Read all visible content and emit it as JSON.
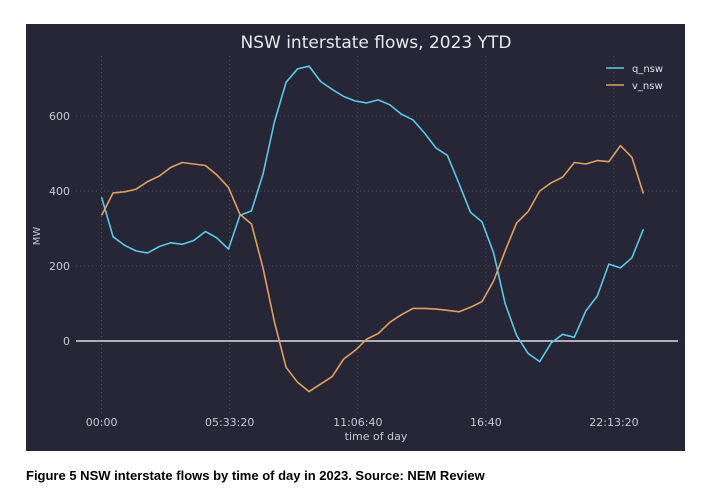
{
  "caption": "Figure 5 NSW interstate flows by time of day in 2023. Source: NEM Review",
  "chart_data": {
    "type": "line",
    "title": "NSW interstate flows, 2023 YTD",
    "xlabel": "time of day",
    "ylabel": "MW",
    "x_unit": "seconds since 00:00",
    "xlim": [
      -4000,
      90000
    ],
    "ylim": [
      -200,
      760
    ],
    "x_ticks": [
      {
        "value": 0,
        "label": "00:00"
      },
      {
        "value": 20000,
        "label": "05:33:20"
      },
      {
        "value": 40000,
        "label": "11:06:40"
      },
      {
        "value": 60000,
        "label": "16:40"
      },
      {
        "value": 80000,
        "label": "22:13:20"
      }
    ],
    "y_ticks": [
      {
        "value": 0,
        "label": "0"
      },
      {
        "value": 200,
        "label": "200"
      },
      {
        "value": 400,
        "label": "400"
      },
      {
        "value": 600,
        "label": "600"
      }
    ],
    "grid": true,
    "legend_position": "top-right",
    "x": [
      0,
      1800,
      3600,
      5400,
      7200,
      9000,
      10800,
      12600,
      14400,
      16200,
      18000,
      19800,
      21600,
      23400,
      25200,
      27000,
      28800,
      30600,
      32400,
      34200,
      36000,
      37800,
      39600,
      41400,
      43200,
      45000,
      46800,
      48600,
      50400,
      52200,
      54000,
      55800,
      57600,
      59400,
      61200,
      63000,
      64800,
      66600,
      68400,
      70200,
      72000,
      73800,
      75600,
      77400,
      79200,
      81000,
      82800,
      84600
    ],
    "series": [
      {
        "name": "q_nsw",
        "color": "#5bc8e8",
        "values": [
          383,
          278,
          255,
          240,
          235,
          252,
          262,
          258,
          268,
          292,
          275,
          245,
          335,
          347,
          445,
          585,
          690,
          726,
          733,
          692,
          671,
          652,
          640,
          635,
          643,
          630,
          605,
          590,
          555,
          515,
          495,
          420,
          343,
          318,
          235,
          100,
          15,
          -33,
          -55,
          -5,
          18,
          10,
          80,
          120,
          205,
          195,
          222,
          298
        ]
      },
      {
        "name": "v_nsw",
        "color": "#e0a060",
        "values": [
          335,
          395,
          398,
          405,
          425,
          440,
          463,
          476,
          472,
          468,
          443,
          410,
          338,
          312,
          195,
          50,
          -70,
          -110,
          -135,
          -115,
          -95,
          -48,
          -25,
          5,
          20,
          50,
          70,
          87,
          87,
          85,
          82,
          78,
          90,
          105,
          160,
          240,
          315,
          345,
          400,
          422,
          437,
          476,
          472,
          481,
          478,
          521,
          490,
          393
        ]
      }
    ]
  }
}
